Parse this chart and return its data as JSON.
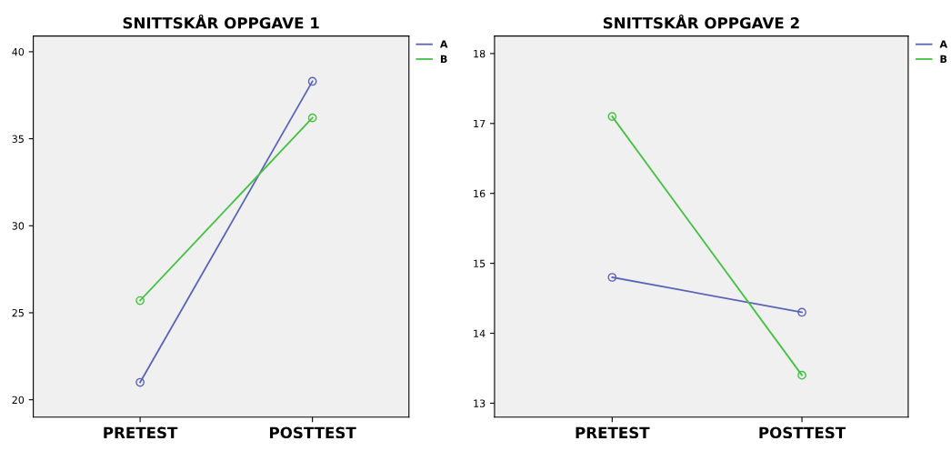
{
  "chart_data": [
    {
      "type": "line",
      "title": "SNITTSKÅR OPPGAVE 1",
      "categories": [
        "PRETEST",
        "POSTTEST"
      ],
      "series": [
        {
          "name": "A",
          "color": "#5a64b4",
          "values": [
            21.0,
            38.3
          ]
        },
        {
          "name": "B",
          "color": "#44c044",
          "values": [
            25.7,
            36.2
          ]
        }
      ],
      "ylim": [
        19,
        40.9
      ],
      "yticks": [
        20,
        25,
        30,
        35,
        40
      ],
      "marker": "circle",
      "legend": "top right",
      "grid": false
    },
    {
      "type": "line",
      "title": "SNITTSKÅR OPPGAVE 2",
      "categories": [
        "PRETEST",
        "POSTTEST"
      ],
      "series": [
        {
          "name": "A",
          "color": "#5a64b4",
          "values": [
            14.8,
            14.3
          ]
        },
        {
          "name": "B",
          "color": "#44c044",
          "values": [
            17.1,
            13.4
          ]
        }
      ],
      "ylim": [
        12.8,
        18.25
      ],
      "yticks": [
        13,
        14,
        15,
        16,
        17,
        18
      ],
      "marker": "circle",
      "legend": "top right",
      "grid": false
    }
  ]
}
